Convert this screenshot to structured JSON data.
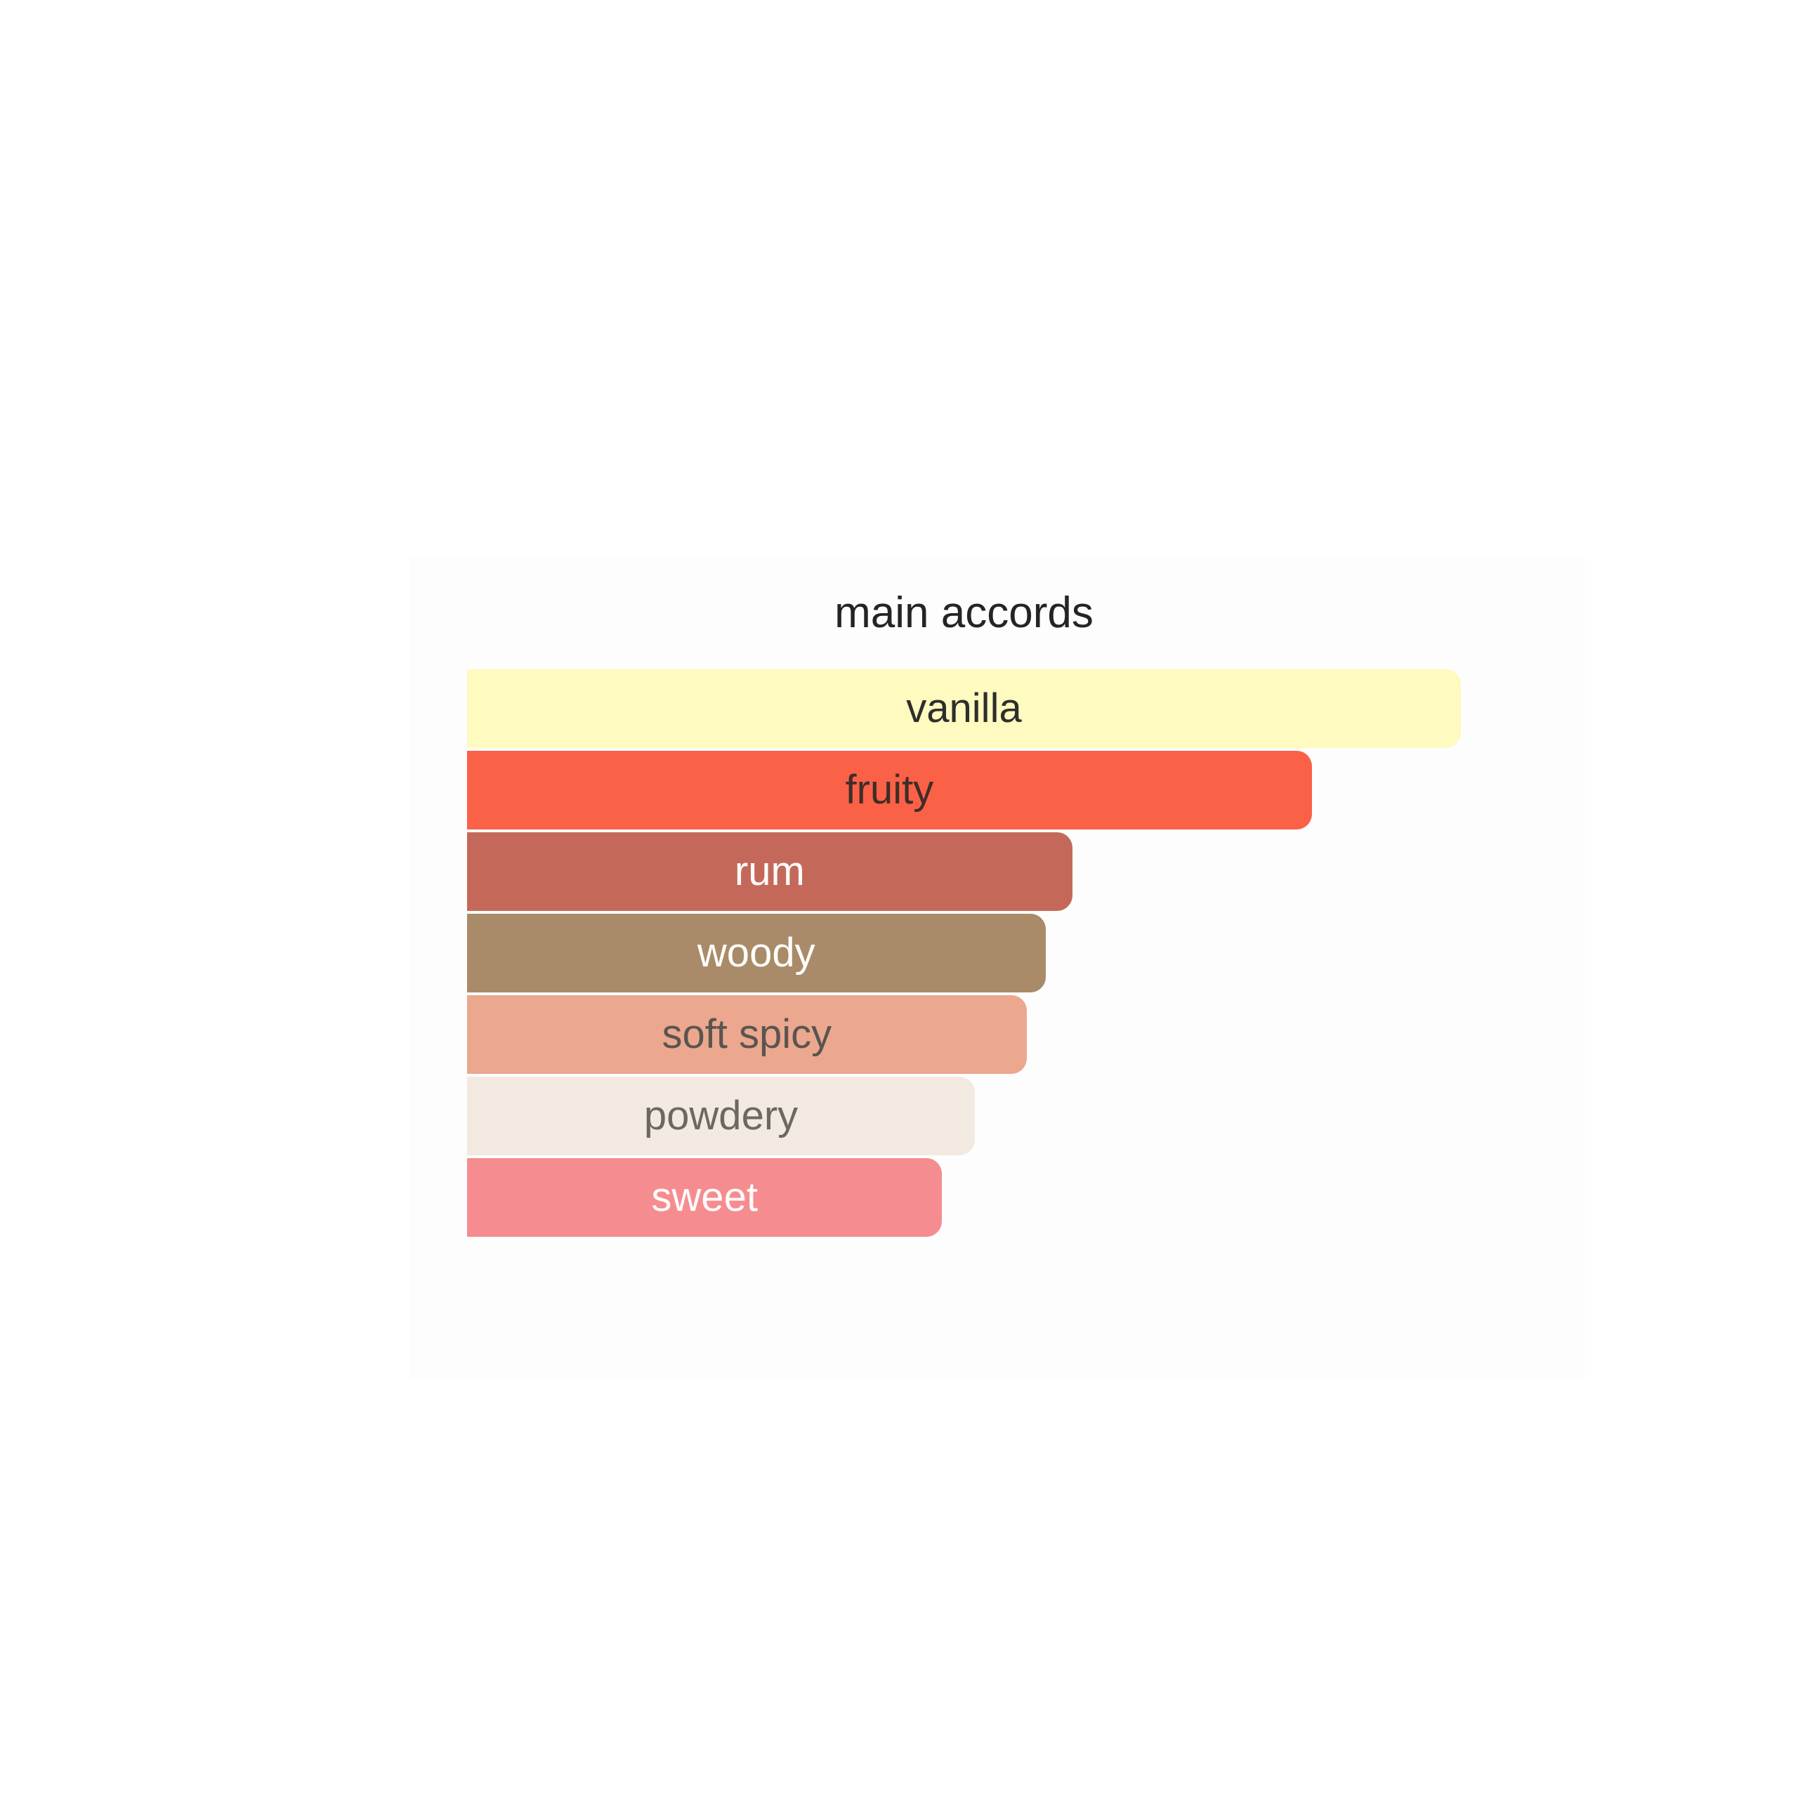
{
  "page": {
    "background_color": "#ffffff",
    "card_background_color": "#fdfdfd"
  },
  "chart_data": {
    "type": "bar",
    "orientation": "horizontal",
    "title": "main accords",
    "title_color": "#242424",
    "categories": [
      "vanilla",
      "fruity",
      "rum",
      "woody",
      "soft spicy",
      "powdery",
      "sweet"
    ],
    "values": [
      100,
      85,
      61,
      58,
      56,
      51,
      48
    ],
    "value_note": "relative bar length, percent of longest bar (estimated from pixels)",
    "xlabel": "",
    "ylabel": "",
    "axes_visible": false,
    "grid": false,
    "legend": "none",
    "bars": [
      {
        "label": "vanilla",
        "width_pct": 100,
        "bar_color": "#fefac0",
        "text_color": "#2e2e2c"
      },
      {
        "label": "fruity",
        "width_pct": 85.0,
        "bar_color": "#fb6147",
        "text_color": "#3e2e27"
      },
      {
        "label": "rum",
        "width_pct": 60.9,
        "bar_color": "#c4695a",
        "text_color": "#fffdfb"
      },
      {
        "label": "woody",
        "width_pct": 58.2,
        "bar_color": "#a98b69",
        "text_color": "#fffdfb"
      },
      {
        "label": "soft spicy",
        "width_pct": 56.3,
        "bar_color": "#eca78f",
        "text_color": "#595550"
      },
      {
        "label": "powdery",
        "width_pct": 51.1,
        "bar_color": "#f2eae1",
        "text_color": "#6c6861"
      },
      {
        "label": "sweet",
        "width_pct": 47.8,
        "bar_color": "#f58d90",
        "text_color": "#fffdfb"
      }
    ]
  }
}
